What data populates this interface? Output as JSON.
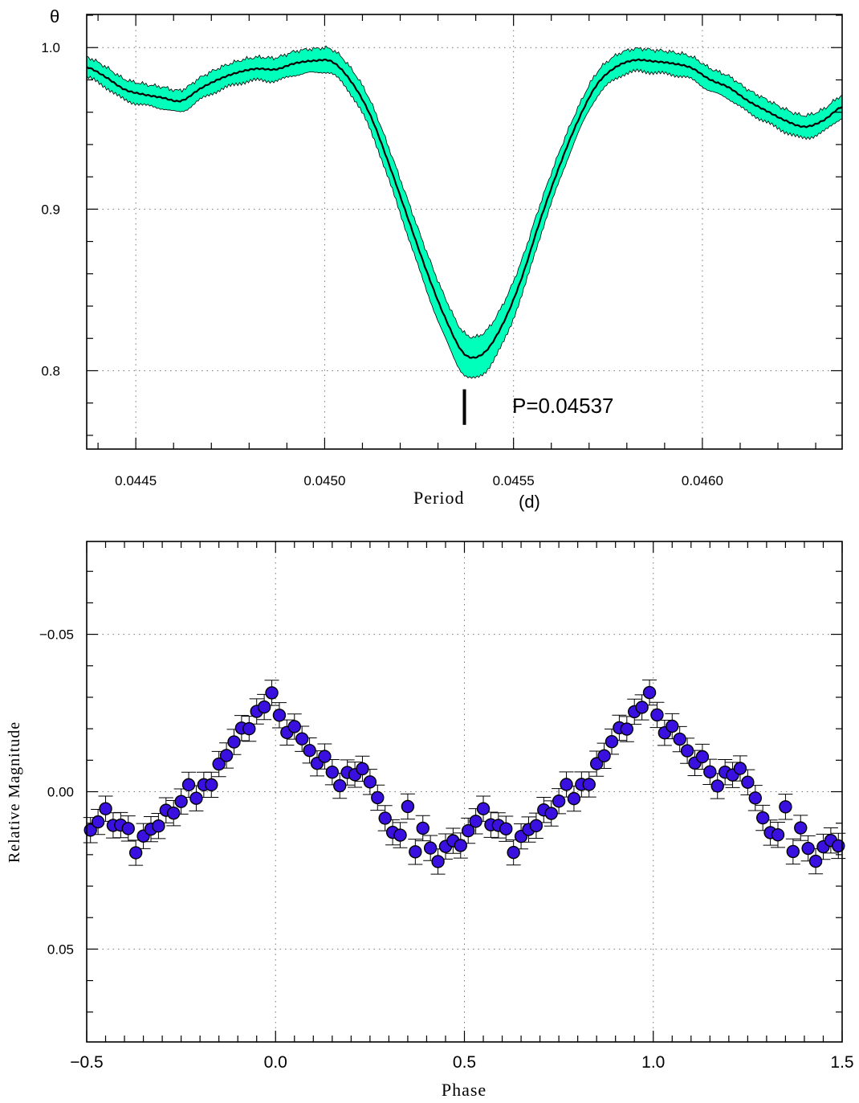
{
  "chart_data": [
    {
      "type": "line",
      "ylabel": "θ",
      "xlabel": "Period",
      "xunit": "(d)",
      "xlim": [
        0.04437,
        0.04637
      ],
      "ylim": [
        0.7515,
        1.0205
      ],
      "x_ticks": [
        0.0445,
        0.045,
        0.0455,
        0.046
      ],
      "x_tick_labels": [
        "0.0445",
        "0.0450",
        "0.0455",
        "0.0460"
      ],
      "y_ticks": [
        0.8,
        0.9,
        1.0
      ],
      "y_tick_labels": [
        "0.8",
        "0.9",
        "1.0"
      ],
      "grid": true,
      "annotation": "P=0.04537",
      "best_period": 0.04537,
      "series": [
        {
          "x": [
            0.04437,
            0.04442,
            0.04447,
            0.04452,
            0.04457,
            0.04462,
            0.04467,
            0.04472,
            0.04477,
            0.04482,
            0.04487,
            0.04492,
            0.04497,
            0.04502,
            0.04507,
            0.04512,
            0.04517,
            0.04522,
            0.04527,
            0.04532,
            0.04537,
            0.04542,
            0.04547,
            0.04552,
            0.04557,
            0.04562,
            0.04567,
            0.04572,
            0.04577,
            0.04582,
            0.04587,
            0.04592,
            0.04597,
            0.04602,
            0.04607,
            0.04612,
            0.04617,
            0.04622,
            0.04627,
            0.04632,
            0.04637
          ],
          "theta": [
            0.9879,
            0.9818,
            0.9741,
            0.971,
            0.969,
            0.967,
            0.9745,
            0.9804,
            0.9846,
            0.9869,
            0.9865,
            0.9902,
            0.9918,
            0.9912,
            0.979,
            0.9585,
            0.928,
            0.8947,
            0.8616,
            0.8322,
            0.8103,
            0.8107,
            0.8282,
            0.8564,
            0.8927,
            0.9256,
            0.9544,
            0.9768,
            0.9878,
            0.9922,
            0.9915,
            0.9902,
            0.9875,
            0.9802,
            0.9753,
            0.9671,
            0.9608,
            0.9548,
            0.951,
            0.9549,
            0.9634
          ],
          "band_halfwidth": [
            0.0062,
            0.0063,
            0.0064,
            0.0065,
            0.0066,
            0.0067,
            0.0068,
            0.0069,
            0.007,
            0.0071,
            0.0072,
            0.0073,
            0.0074,
            0.0075,
            0.008,
            0.009,
            0.01,
            0.011,
            0.012,
            0.0125,
            0.013,
            0.0125,
            0.012,
            0.011,
            0.01,
            0.009,
            0.008,
            0.0075,
            0.0072,
            0.007,
            0.007,
            0.007,
            0.007,
            0.007,
            0.007,
            0.007,
            0.007,
            0.007,
            0.007,
            0.007,
            0.007
          ]
        }
      ],
      "colors": {
        "band": "#00ffbb",
        "line": "#000000"
      }
    },
    {
      "type": "scatter",
      "xlabel": "Phase",
      "ylabel": "Relative Magnitude",
      "xlim": [
        -0.5,
        1.5
      ],
      "ylim": [
        0.0795,
        -0.0795
      ],
      "y_inverted": true,
      "x_ticks": [
        -0.5,
        0.0,
        0.5,
        1.0,
        1.5
      ],
      "x_tick_labels": [
        "−0.5",
        "0.0",
        "0.5",
        "1.0",
        "1.5"
      ],
      "y_ticks": [
        -0.05,
        0.0,
        0.05
      ],
      "y_tick_labels": [
        "−0.05",
        "0.00",
        "0.05"
      ],
      "grid": true,
      "error_bar": 0.004,
      "colors": {
        "marker": "#3a10e0",
        "edge": "#000000"
      },
      "series": [
        {
          "x": [
            -0.49,
            -0.47,
            -0.45,
            -0.43,
            -0.41,
            -0.39,
            -0.37,
            -0.35,
            -0.33,
            -0.31,
            -0.29,
            -0.27,
            -0.25,
            -0.23,
            -0.21,
            -0.19,
            -0.17,
            -0.15,
            -0.13,
            -0.11,
            -0.09,
            -0.07,
            -0.05,
            -0.03,
            -0.01,
            0.01,
            0.03,
            0.05,
            0.07,
            0.09,
            0.11,
            0.13,
            0.15,
            0.17,
            0.19,
            0.21,
            0.23,
            0.25,
            0.27,
            0.29,
            0.31,
            0.33,
            0.35,
            0.37,
            0.39,
            0.41,
            0.43,
            0.45,
            0.47,
            0.49,
            0.51,
            0.53,
            0.55,
            0.57,
            0.59,
            0.61,
            0.63,
            0.65,
            0.67,
            0.69,
            0.71,
            0.73,
            0.75,
            0.77,
            0.79,
            0.81,
            0.83,
            0.85,
            0.87,
            0.89,
            0.91,
            0.93,
            0.95,
            0.97,
            0.99,
            1.01,
            1.03,
            1.05,
            1.07,
            1.09,
            1.11,
            1.13,
            1.15,
            1.17,
            1.19,
            1.21,
            1.23,
            1.25,
            1.27,
            1.29,
            1.31,
            1.33,
            1.35,
            1.37,
            1.39,
            1.41,
            1.43,
            1.45,
            1.47,
            1.49
          ],
          "y": [
            0.0122,
            0.0096,
            0.0054,
            0.0107,
            0.0106,
            0.0117,
            0.0194,
            0.0141,
            0.0119,
            0.0109,
            0.0059,
            0.0068,
            0.0031,
            -0.0022,
            0.0021,
            -0.0022,
            -0.0022,
            -0.0088,
            -0.0115,
            -0.0158,
            -0.0202,
            -0.02,
            -0.0255,
            -0.0269,
            -0.0314,
            -0.0243,
            -0.0188,
            -0.0207,
            -0.0168,
            -0.0131,
            -0.009,
            -0.0112,
            -0.0062,
            -0.0019,
            -0.0061,
            -0.0054,
            -0.0073,
            -0.0031,
            0.0019,
            0.0084,
            0.0129,
            0.0138,
            0.0047,
            0.0191,
            0.0116,
            0.0179,
            0.0222,
            0.0174,
            0.0156,
            0.0171,
            0.0124,
            0.0094,
            0.0054,
            0.0105,
            0.0107,
            0.0118,
            0.0193,
            0.0142,
            0.012,
            0.0108,
            0.0058,
            0.0069,
            0.003,
            -0.0023,
            0.0022,
            -0.0023,
            -0.0023,
            -0.0089,
            -0.0114,
            -0.0159,
            -0.0203,
            -0.0199,
            -0.0254,
            -0.0268,
            -0.0315,
            -0.0244,
            -0.0187,
            -0.0208,
            -0.0167,
            -0.013,
            -0.0091,
            -0.0111,
            -0.0063,
            -0.0018,
            -0.0062,
            -0.0053,
            -0.0074,
            -0.003,
            0.002,
            0.0083,
            0.013,
            0.0137,
            0.0048,
            0.019,
            0.0115,
            0.018,
            0.0221,
            0.0175,
            0.0155,
            0.0172
          ]
        }
      ]
    }
  ]
}
